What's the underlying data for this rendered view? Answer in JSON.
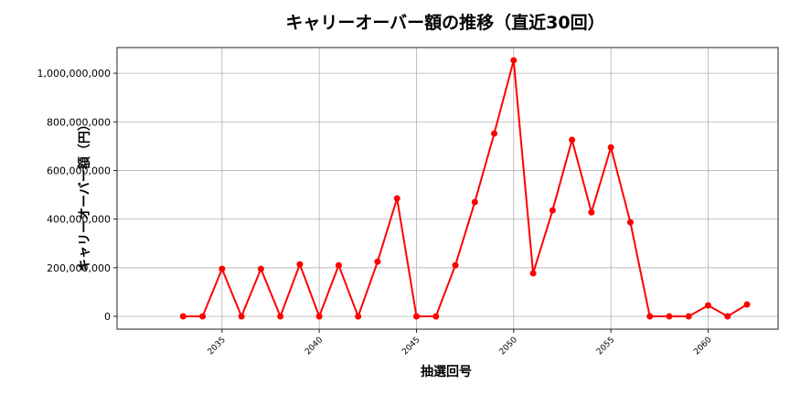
{
  "chart_data": {
    "type": "line",
    "title": "キャリーオーバー額の推移（直近30回）",
    "xlabel": "抽選回号",
    "ylabel": "キャリーオーバー額（円）",
    "x": [
      2033,
      2034,
      2035,
      2036,
      2037,
      2038,
      2039,
      2040,
      2041,
      2042,
      2043,
      2044,
      2045,
      2046,
      2047,
      2048,
      2049,
      2050,
      2051,
      2052,
      2053,
      2054,
      2055,
      2056,
      2057,
      2058,
      2059,
      2060,
      2061,
      2062
    ],
    "series": [
      {
        "name": "キャリーオーバー額",
        "color": "#ff0000",
        "values": [
          0,
          0,
          195000000,
          0,
          195000000,
          0,
          214000000,
          0,
          210000000,
          0,
          225000000,
          485000000,
          0,
          0,
          210000000,
          470000000,
          752000000,
          1053000000,
          177000000,
          436000000,
          726000000,
          428000000,
          695000000,
          387000000,
          0,
          0,
          0,
          45000000,
          0,
          49000000
        ]
      }
    ],
    "xticks": [
      2035,
      2040,
      2045,
      2050,
      2055,
      2060
    ],
    "yticks": [
      0,
      200000000,
      400000000,
      600000000,
      800000000,
      1000000000
    ],
    "ytick_labels": [
      "0",
      "200,000,000",
      "400,000,000",
      "600,000,000",
      "800,000,000",
      "1,000,000,000"
    ],
    "xlim": [
      2029.6,
      2063.6
    ],
    "ylim": [
      -52650000,
      1105650000
    ],
    "grid": true,
    "legend": null
  }
}
